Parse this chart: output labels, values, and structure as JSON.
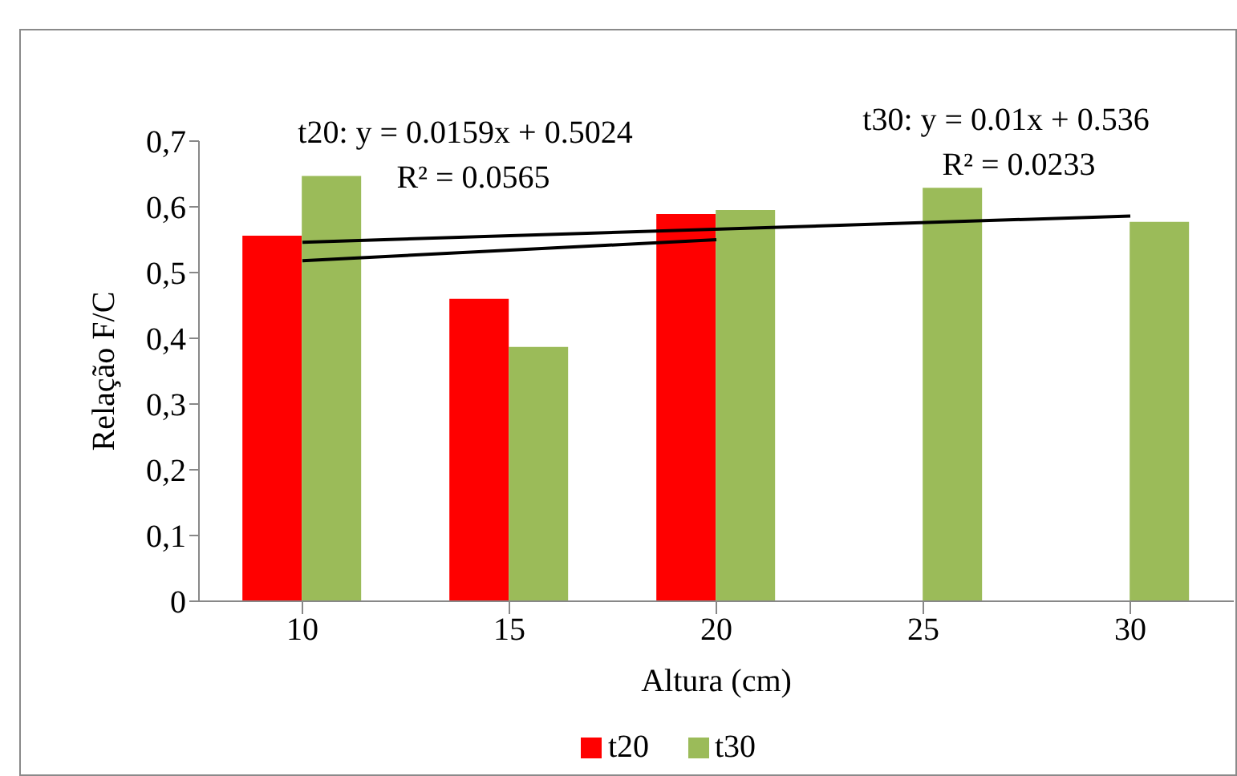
{
  "chart_data": {
    "type": "bar",
    "xlabel": "Altura (cm)",
    "ylabel": "Relação F/C",
    "categories": [
      "10",
      "15",
      "20",
      "25",
      "30"
    ],
    "series": [
      {
        "name": "t20",
        "color": "#ff0000",
        "values": [
          0.556,
          0.46,
          0.589,
          null,
          null
        ]
      },
      {
        "name": "t30",
        "color": "#9bbb59",
        "values": [
          0.647,
          0.387,
          0.595,
          0.629,
          0.577
        ]
      },
      {
        "type": "line",
        "color": "#000000",
        "x": [
          "10",
          "20"
        ],
        "values": [
          0.518,
          0.55
        ],
        "marker": "none"
      },
      {
        "type": "line",
        "color": "#000000",
        "x": [
          "10",
          "30"
        ],
        "values": [
          0.546,
          0.586
        ],
        "marker": "none"
      }
    ],
    "ylim": [
      0,
      0.7
    ],
    "yticks": [
      {
        "value": 0,
        "label": "0"
      },
      {
        "value": 0.1,
        "label": "0,1"
      },
      {
        "value": 0.2,
        "label": "0,2"
      },
      {
        "value": 0.3,
        "label": "0,3"
      },
      {
        "value": 0.4,
        "label": "0,4"
      },
      {
        "value": 0.5,
        "label": "0,5"
      },
      {
        "value": 0.6,
        "label": "0,6"
      },
      {
        "value": 0.7,
        "label": "0,7"
      }
    ],
    "annotations": [
      "t20: y = 0.0159x + 0.5024",
      "R² = 0.0565",
      "t30: y = 0.01x + 0.536",
      "R² = 0.0233"
    ],
    "legend": "bottom"
  }
}
